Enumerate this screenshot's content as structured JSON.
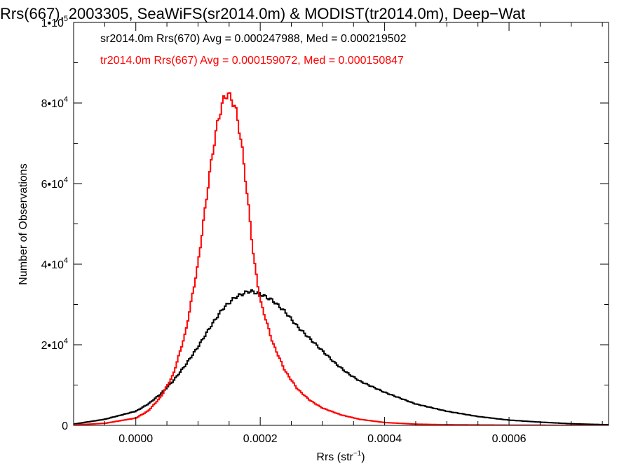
{
  "chart_data": {
    "type": "line",
    "title": "Rrs(667), 2003305, SeaWiFS(sr2014.0m) & MODIST(tr2014.0m), Deep−Wat",
    "xlabel": "Rrs (str",
    "xlabel_sup": "−1",
    "xlabel_end": ")",
    "ylabel": "Number of Observations",
    "xlim": [
      -0.0001,
      0.00076
    ],
    "ylim": [
      0,
      100000
    ],
    "grid": false,
    "x_ticks": [
      {
        "value": 0.0,
        "label": "0.0000"
      },
      {
        "value": 0.0002,
        "label": "0.0002"
      },
      {
        "value": 0.0004,
        "label": "0.0004"
      },
      {
        "value": 0.0006,
        "label": "0.0006"
      }
    ],
    "y_ticks": [
      {
        "value": 0,
        "label": "0"
      },
      {
        "value": 20000,
        "label": "2•10",
        "sup": "4"
      },
      {
        "value": 40000,
        "label": "4•10",
        "sup": "4"
      },
      {
        "value": 60000,
        "label": "6•10",
        "sup": "4"
      },
      {
        "value": 80000,
        "label": "8•10",
        "sup": "4"
      },
      {
        "value": 100000,
        "label": "1•10",
        "sup": "5"
      }
    ],
    "annotations": [
      {
        "text": "sr2014.0m Rrs(670) Avg = 0.000247988, Med = 0.000219502",
        "color": "#000000"
      },
      {
        "text": "tr2014.0m Rrs(667) Avg = 0.000159072, Med = 0.000150847",
        "color": "#ff0000"
      }
    ],
    "series": [
      {
        "color": "#000000",
        "style": "step",
        "x": [
          -0.0001,
          -5e-05,
          0.0,
          2e-05,
          4e-05,
          6e-05,
          8e-05,
          0.0001,
          0.00012,
          0.00014,
          0.00016,
          0.00018,
          0.000185,
          0.0002,
          0.00022,
          0.00024,
          0.00026,
          0.00028,
          0.0003,
          0.00032,
          0.00034,
          0.00036,
          0.0004,
          0.00045,
          0.0005,
          0.00055,
          0.0006,
          0.00065,
          0.0007,
          0.00076
        ],
        "y": [
          300,
          1500,
          3500,
          5300,
          7800,
          11000,
          15000,
          19500,
          24500,
          29000,
          31800,
          33200,
          33300,
          32600,
          31000,
          28200,
          24500,
          21500,
          18500,
          15500,
          13000,
          11000,
          8200,
          5300,
          3500,
          2200,
          1300,
          800,
          400,
          150
        ]
      },
      {
        "color": "#ff0000",
        "style": "step",
        "x": [
          -0.0001,
          -5e-05,
          0.0,
          2e-05,
          4e-05,
          6e-05,
          8e-05,
          0.0001,
          0.00011,
          0.00012,
          0.00013,
          0.00014,
          0.000148,
          0.00016,
          0.00017,
          0.00018,
          0.00019,
          0.0002,
          0.00022,
          0.00024,
          0.00026,
          0.00028,
          0.0003,
          0.00033,
          0.00036,
          0.0004,
          0.00045,
          0.0005,
          0.0006,
          0.00076
        ],
        "y": [
          100,
          500,
          1800,
          3600,
          7000,
          12500,
          23000,
          40000,
          52000,
          64000,
          74000,
          80500,
          82500,
          79000,
          70000,
          56000,
          41000,
          31000,
          20500,
          13500,
          9000,
          6200,
          4300,
          2600,
          1500,
          700,
          300,
          150,
          50,
          0
        ]
      }
    ]
  }
}
